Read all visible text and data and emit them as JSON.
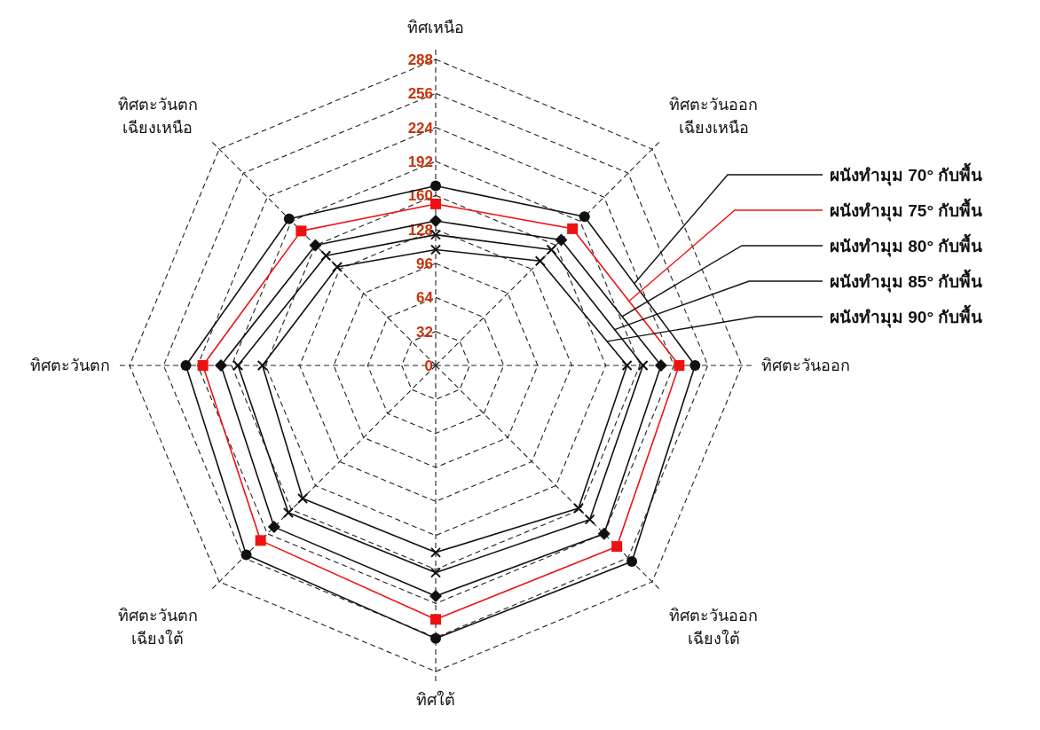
{
  "chart_data": {
    "type": "radar",
    "categories": [
      "ทิศเหนือ",
      "ทิศตะวันออก\nเฉียงเหนือ",
      "ทิศตะวันออก",
      "ทิศตะวันออก\nเฉียงใต้",
      "ทิศใต้",
      "ทิศตะวันตก\nเฉียงใต้",
      "ทิศตะวันตก",
      "ทิศตะวันตก\nเฉียงเหนือ"
    ],
    "ylim": [
      0,
      288
    ],
    "yticks": [
      0,
      32,
      64,
      96,
      128,
      160,
      192,
      224,
      256,
      288
    ],
    "grid": true,
    "legend": "right",
    "line_style": "solid",
    "series": [
      {
        "name": "ผนังทำมุม 70° กับพื้น",
        "color": "#111111",
        "marker": "circle",
        "values": [
          169,
          198,
          244,
          261,
          257,
          252,
          235,
          195
        ]
      },
      {
        "name": "ผนังทำมุม 75° กับพื้น",
        "color": "#ee1111",
        "marker": "square",
        "values": [
          152,
          182,
          229,
          241,
          239,
          233,
          219,
          179
        ]
      },
      {
        "name": "ผนังทำมุม 80° กับพื้น",
        "color": "#111111",
        "marker": "diamond",
        "values": [
          136,
          167,
          212,
          224,
          217,
          215,
          202,
          160
        ]
      },
      {
        "name": "ผนังทำมุม 85° กับพื้น",
        "color": "#111111",
        "marker": "cross",
        "values": [
          123,
          154,
          195,
          205,
          195,
          196,
          186,
          146
        ]
      },
      {
        "name": "ผนังทำมุม 90° กับพื้น",
        "color": "#111111",
        "marker": "cross",
        "values": [
          109,
          139,
          180,
          190,
          176,
          177,
          163,
          131
        ]
      }
    ]
  }
}
